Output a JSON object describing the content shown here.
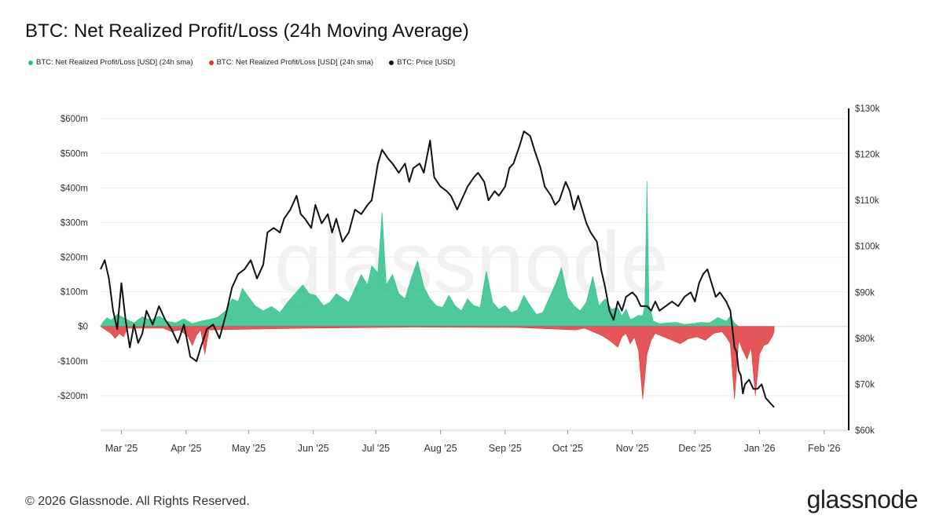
{
  "chart_data": {
    "type": "area",
    "title": "BTC: Net Realized Profit/Loss (24h Moving Average)",
    "legend": [
      {
        "name": "BTC: Net Realized Profit/Loss [USD] (24h sma)",
        "color": "#2fc08a"
      },
      {
        "name": "BTC: Net Realized Profit/Loss [USD] (24h sma)",
        "color": "#e0383b"
      },
      {
        "name": "BTC: Price [USD]",
        "color": "#111111"
      }
    ],
    "y_left": {
      "range": [
        -300,
        630
      ],
      "ticks": [
        -200,
        -100,
        0,
        100,
        200,
        300,
        400,
        500,
        600
      ],
      "tick_labels": [
        "-$200m",
        "-$100m",
        "$0",
        "$100m",
        "$200m",
        "$300m",
        "$400m",
        "$500m",
        "$600m"
      ]
    },
    "y_right": {
      "range": [
        60,
        130
      ],
      "ticks": [
        60,
        70,
        80,
        90,
        100,
        110,
        120,
        130
      ],
      "tick_labels": [
        "$60k",
        "$70k",
        "$80k",
        "$90k",
        "$100k",
        "$110k",
        "$120k",
        "$130k"
      ]
    },
    "x_range": [
      0,
      358
    ],
    "x_ticks": [
      {
        "label": "Mar '25",
        "day": 10
      },
      {
        "label": "Apr '25",
        "day": 41
      },
      {
        "label": "May '25",
        "day": 71
      },
      {
        "label": "Jun '25",
        "day": 102
      },
      {
        "label": "Jul '25",
        "day": 132
      },
      {
        "label": "Aug '25",
        "day": 163
      },
      {
        "label": "Sep '25",
        "day": 194
      },
      {
        "label": "Oct '25",
        "day": 224
      },
      {
        "label": "Nov '25",
        "day": 255
      },
      {
        "label": "Dec '25",
        "day": 285
      },
      {
        "label": "Jan '26",
        "day": 316
      },
      {
        "label": "Feb '26",
        "day": 347
      }
    ],
    "series": [
      {
        "name": "BTC: Price [USD]",
        "unit": "k USD",
        "color": "#111111",
        "points": [
          [
            0,
            95
          ],
          [
            2,
            97
          ],
          [
            4,
            93
          ],
          [
            6,
            86
          ],
          [
            8,
            82
          ],
          [
            10,
            92
          ],
          [
            12,
            84
          ],
          [
            14,
            78
          ],
          [
            16,
            83
          ],
          [
            18,
            79
          ],
          [
            20,
            81
          ],
          [
            22,
            86
          ],
          [
            25,
            83
          ],
          [
            28,
            87
          ],
          [
            31,
            84
          ],
          [
            34,
            82
          ],
          [
            37,
            79
          ],
          [
            40,
            83
          ],
          [
            43,
            76
          ],
          [
            46,
            75
          ],
          [
            48,
            78
          ],
          [
            51,
            82
          ],
          [
            54,
            83
          ],
          [
            57,
            80
          ],
          [
            60,
            85
          ],
          [
            63,
            91
          ],
          [
            66,
            94
          ],
          [
            69,
            95
          ],
          [
            72,
            97
          ],
          [
            75,
            93
          ],
          [
            78,
            96
          ],
          [
            80,
            103
          ],
          [
            83,
            104
          ],
          [
            86,
            103
          ],
          [
            88,
            106
          ],
          [
            91,
            108
          ],
          [
            94,
            111
          ],
          [
            96,
            107
          ],
          [
            98,
            106
          ],
          [
            101,
            104
          ],
          [
            103,
            109
          ],
          [
            106,
            105
          ],
          [
            109,
            107
          ],
          [
            111,
            103
          ],
          [
            113,
            106
          ],
          [
            116,
            101
          ],
          [
            119,
            103
          ],
          [
            122,
            108
          ],
          [
            125,
            107
          ],
          [
            128,
            109
          ],
          [
            130,
            110
          ],
          [
            133,
            118
          ],
          [
            135,
            121
          ],
          [
            138,
            119
          ],
          [
            140,
            118
          ],
          [
            143,
            116
          ],
          [
            146,
            118
          ],
          [
            148,
            114
          ],
          [
            150,
            117
          ],
          [
            153,
            118
          ],
          [
            155,
            116
          ],
          [
            158,
            123
          ],
          [
            160,
            115
          ],
          [
            163,
            113
          ],
          [
            166,
            112
          ],
          [
            168,
            111
          ],
          [
            171,
            108
          ],
          [
            173,
            110
          ],
          [
            176,
            113
          ],
          [
            179,
            115
          ],
          [
            181,
            116
          ],
          [
            184,
            114
          ],
          [
            186,
            110
          ],
          [
            189,
            112
          ],
          [
            191,
            111
          ],
          [
            194,
            113
          ],
          [
            196,
            117
          ],
          [
            198,
            118
          ],
          [
            201,
            122
          ],
          [
            203,
            125
          ],
          [
            206,
            124
          ],
          [
            208,
            121
          ],
          [
            211,
            117
          ],
          [
            213,
            113
          ],
          [
            216,
            111
          ],
          [
            218,
            109
          ],
          [
            220,
            110
          ],
          [
            223,
            114
          ],
          [
            225,
            112
          ],
          [
            227,
            108
          ],
          [
            229,
            111
          ],
          [
            231,
            108
          ],
          [
            233,
            105
          ],
          [
            235,
            103
          ],
          [
            238,
            101
          ],
          [
            240,
            95
          ],
          [
            242,
            91
          ],
          [
            244,
            86
          ],
          [
            246,
            84
          ],
          [
            248,
            88
          ],
          [
            250,
            86
          ],
          [
            252,
            89
          ],
          [
            255,
            90
          ],
          [
            257,
            89
          ],
          [
            259,
            87
          ],
          [
            262,
            87
          ],
          [
            264,
            86
          ],
          [
            266,
            88
          ],
          [
            268,
            86
          ],
          [
            271,
            87
          ],
          [
            274,
            88
          ],
          [
            277,
            87
          ],
          [
            280,
            89
          ],
          [
            283,
            90
          ],
          [
            285,
            88
          ],
          [
            287,
            92
          ],
          [
            289,
            94
          ],
          [
            291,
            95
          ],
          [
            293,
            92
          ],
          [
            295,
            89
          ],
          [
            297,
            90
          ],
          [
            300,
            88
          ],
          [
            302,
            86
          ],
          [
            303,
            82
          ],
          [
            304,
            78
          ],
          [
            305,
            77
          ],
          [
            306,
            73
          ],
          [
            307,
            72
          ],
          [
            308,
            68
          ],
          [
            309,
            70
          ],
          [
            311,
            71
          ],
          [
            313,
            69
          ],
          [
            315,
            69
          ],
          [
            317,
            70
          ],
          [
            319,
            67
          ],
          [
            321,
            66
          ],
          [
            323,
            65
          ]
        ]
      },
      {
        "name": "BTC: Net Realized Profit/Loss [USD] (24h sma)",
        "unit": "m USD",
        "color": "#2fc08a",
        "points": [
          [
            0,
            0
          ],
          [
            1,
            12
          ],
          [
            3,
            25
          ],
          [
            5,
            18
          ],
          [
            8,
            35
          ],
          [
            12,
            22
          ],
          [
            16,
            10
          ],
          [
            20,
            28
          ],
          [
            24,
            18
          ],
          [
            28,
            30
          ],
          [
            32,
            15
          ],
          [
            36,
            10
          ],
          [
            40,
            22
          ],
          [
            44,
            8
          ],
          [
            48,
            15
          ],
          [
            52,
            20
          ],
          [
            56,
            26
          ],
          [
            60,
            45
          ],
          [
            63,
            80
          ],
          [
            66,
            72
          ],
          [
            68,
            110
          ],
          [
            71,
            85
          ],
          [
            74,
            60
          ],
          [
            78,
            45
          ],
          [
            82,
            58
          ],
          [
            86,
            40
          ],
          [
            90,
            72
          ],
          [
            94,
            100
          ],
          [
            97,
            120
          ],
          [
            100,
            95
          ],
          [
            103,
            90
          ],
          [
            107,
            60
          ],
          [
            110,
            70
          ],
          [
            113,
            95
          ],
          [
            116,
            82
          ],
          [
            119,
            70
          ],
          [
            122,
            110
          ],
          [
            125,
            150
          ],
          [
            128,
            120
          ],
          [
            130,
            175
          ],
          [
            133,
            155
          ],
          [
            135,
            330
          ],
          [
            137,
            120
          ],
          [
            140,
            150
          ],
          [
            143,
            95
          ],
          [
            146,
            80
          ],
          [
            149,
            140
          ],
          [
            152,
            190
          ],
          [
            155,
            115
          ],
          [
            158,
            80
          ],
          [
            161,
            60
          ],
          [
            164,
            55
          ],
          [
            167,
            90
          ],
          [
            170,
            60
          ],
          [
            173,
            45
          ],
          [
            176,
            80
          ],
          [
            179,
            60
          ],
          [
            182,
            55
          ],
          [
            185,
            160
          ],
          [
            188,
            70
          ],
          [
            191,
            50
          ],
          [
            194,
            60
          ],
          [
            197,
            40
          ],
          [
            200,
            48
          ],
          [
            203,
            90
          ],
          [
            206,
            60
          ],
          [
            209,
            35
          ],
          [
            212,
            40
          ],
          [
            215,
            80
          ],
          [
            218,
            120
          ],
          [
            221,
            170
          ],
          [
            224,
            85
          ],
          [
            227,
            60
          ],
          [
            230,
            45
          ],
          [
            233,
            70
          ],
          [
            236,
            145
          ],
          [
            239,
            60
          ],
          [
            242,
            80
          ],
          [
            245,
            50
          ],
          [
            248,
            55
          ],
          [
            250,
            30
          ],
          [
            252,
            50
          ],
          [
            254,
            20
          ],
          [
            256,
            25
          ],
          [
            258,
            32
          ],
          [
            260,
            30
          ],
          [
            261,
            60
          ],
          [
            262,
            420
          ],
          [
            263,
            60
          ],
          [
            264,
            40
          ],
          [
            265,
            15
          ],
          [
            268,
            8
          ],
          [
            272,
            10
          ],
          [
            276,
            12
          ],
          [
            280,
            6
          ],
          [
            284,
            8
          ],
          [
            288,
            12
          ],
          [
            292,
            10
          ],
          [
            296,
            26
          ],
          [
            300,
            15
          ],
          [
            302,
            30
          ],
          [
            304,
            10
          ],
          [
            306,
            0
          ],
          [
            323,
            0
          ]
        ]
      },
      {
        "name": "BTC: Net Realized Profit/Loss [USD] (24h sma)",
        "unit": "m USD",
        "color": "#e0383b",
        "points": [
          [
            0,
            0
          ],
          [
            5,
            -20
          ],
          [
            7,
            -35
          ],
          [
            9,
            -20
          ],
          [
            11,
            -30
          ],
          [
            13,
            -5
          ],
          [
            30,
            -5
          ],
          [
            34,
            -15
          ],
          [
            38,
            -10
          ],
          [
            42,
            -30
          ],
          [
            44,
            -55
          ],
          [
            46,
            -25
          ],
          [
            48,
            -10
          ],
          [
            50,
            -80
          ],
          [
            52,
            -10
          ],
          [
            100,
            -5
          ],
          [
            150,
            -2
          ],
          [
            200,
            -3
          ],
          [
            228,
            -10
          ],
          [
            232,
            -5
          ],
          [
            240,
            -25
          ],
          [
            244,
            -40
          ],
          [
            246,
            -50
          ],
          [
            248,
            -60
          ],
          [
            250,
            -30
          ],
          [
            252,
            -20
          ],
          [
            254,
            -50
          ],
          [
            256,
            -30
          ],
          [
            258,
            -70
          ],
          [
            260,
            -210
          ],
          [
            262,
            -80
          ],
          [
            264,
            -40
          ],
          [
            266,
            -20
          ],
          [
            270,
            -30
          ],
          [
            274,
            -40
          ],
          [
            278,
            -50
          ],
          [
            282,
            -35
          ],
          [
            286,
            -30
          ],
          [
            290,
            -40
          ],
          [
            294,
            -20
          ],
          [
            298,
            -15
          ],
          [
            300,
            -30
          ],
          [
            302,
            -50
          ],
          [
            304,
            -210
          ],
          [
            306,
            -40
          ],
          [
            308,
            -70
          ],
          [
            310,
            -95
          ],
          [
            312,
            -60
          ],
          [
            314,
            -200
          ],
          [
            316,
            -80
          ],
          [
            318,
            -55
          ],
          [
            320,
            -50
          ],
          [
            322,
            -30
          ],
          [
            323,
            -15
          ]
        ]
      }
    ]
  },
  "footer": {
    "copyright": "© 2026 Glassnode. All Rights Reserved.",
    "brand": "glassnode",
    "watermark": "glassnode"
  }
}
